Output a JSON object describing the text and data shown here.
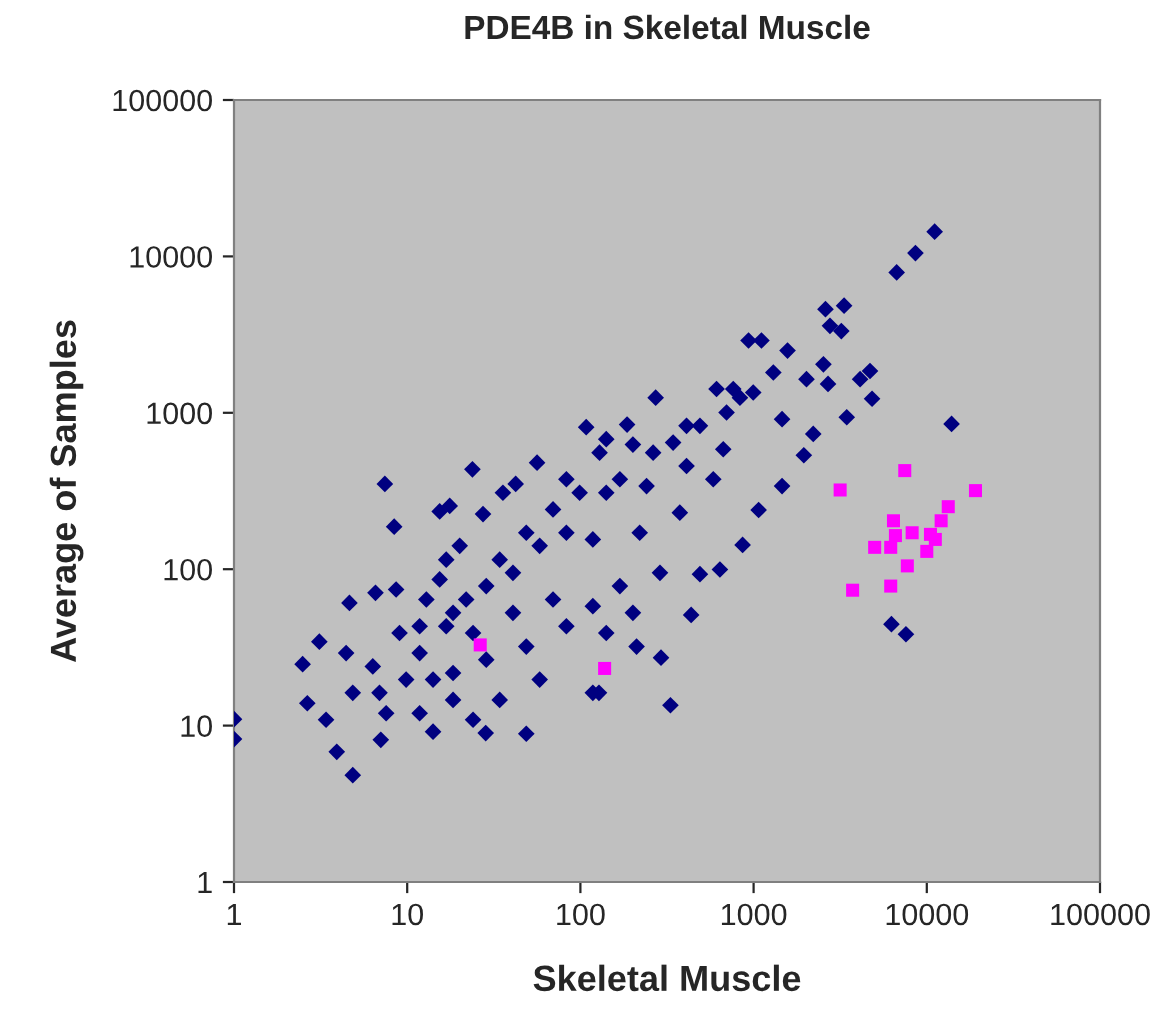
{
  "chart_data": {
    "type": "scatter",
    "title": "PDE4B in Skeletal Muscle",
    "xlabel": "Skeletal Muscle",
    "ylabel": "Average of Samples",
    "log": "xy",
    "grid": false,
    "legend": false,
    "xlim": [
      1,
      100000
    ],
    "ylim": [
      1,
      100000
    ],
    "xticks": [
      1,
      10,
      100,
      1000,
      10000,
      100000
    ],
    "yticks": [
      1,
      10,
      100,
      1000,
      10000,
      100000
    ],
    "series": [
      {
        "color": "#000080",
        "marker": "diamond",
        "x": [
          11100,
          8600,
          6700,
          2600,
          3330,
          2760,
          3210,
          935,
          1110,
          1570,
          2530,
          2020,
          2690,
          4120,
          4700,
          4830,
          3450,
          13900,
          1460,
          2210,
          1950,
          1460,
          6250,
          7580,
          1069,
          864,
          639,
          490,
          436,
          331,
          292,
          211,
          118,
          128,
          48.7,
          28.4,
          14.1,
          4.85,
          3.92,
          7.04,
          1,
          1,
          2.65,
          2.49,
          3.11,
          4.64,
          6.56,
          8.63,
          7.43,
          8.41,
          15.4,
          17.6,
          23.8,
          42.3,
          56.2,
          108,
          186,
          272,
          141,
          201,
          129,
          69.5,
          35.7,
          27.4,
          611,
          763,
          1300,
          410,
          343,
          668,
          585,
          241,
          169,
          83,
          375,
          220,
          118,
          58.2,
          34.2,
          20.1,
          15.4,
          21.9,
          40.8,
          69.5,
          118,
          169,
          288,
          201,
          141,
          83,
          48.7,
          28.6,
          18.4,
          11.8,
          9.86,
          6.33,
          4.85,
          3.4,
          7.56,
          11.8,
          18.4,
          34.2,
          58.2,
          18.4,
          11.8,
          24,
          28.6,
          40.8,
          48.7,
          83,
          99,
          141,
          263,
          410,
          490,
          698,
          834,
          995,
          16.8,
          14.1,
          24,
          6.92,
          4.44,
          9.03,
          16.8,
          12.9
        ],
        "values": [
          14400,
          10500,
          7900,
          4600,
          4840,
          3600,
          3330,
          2900,
          2900,
          2500,
          2040,
          1640,
          1530,
          1640,
          1850,
          1230,
          937,
          849,
          910,
          733,
          535,
          340,
          44.5,
          38.4,
          239,
          143,
          99.6,
          93,
          51,
          13.5,
          27.2,
          32,
          16.2,
          16.2,
          8.87,
          8.96,
          9.14,
          4.82,
          6.8,
          8.11,
          11,
          8.2,
          13.9,
          24.7,
          34.4,
          60.9,
          70.6,
          74.2,
          351,
          187,
          234,
          254,
          435,
          351,
          480,
          809,
          841,
          1250,
          678,
          626,
          556,
          241,
          308,
          225,
          1420,
          1420,
          1810,
          825,
          645,
          585,
          376,
          340,
          376,
          376,
          230,
          171,
          155,
          141,
          115,
          141,
          86,
          64,
          52.6,
          64,
          58,
          78,
          94.8,
          52.6,
          39.1,
          43.2,
          32,
          26.4,
          21.7,
          29.1,
          19.7,
          23.9,
          16.2,
          10.9,
          12,
          12,
          14.6,
          14.6,
          19.7,
          52.6,
          43.2,
          39.1,
          78,
          94.8,
          171,
          171,
          308,
          308,
          556,
          457,
          825,
          1004,
          1250,
          1349,
          43.2,
          19.7,
          10.9,
          16.2,
          29.1,
          39.1,
          115,
          64
        ]
      },
      {
        "color": "#ff00ff",
        "marker": "square",
        "x": [
          26.4,
          138,
          3160,
          7460,
          19100,
          13300,
          12100,
          6420,
          6590,
          8230,
          10500,
          11200,
          5000,
          6190,
          10000,
          7720,
          3730,
          6190
        ],
        "values": [
          32.8,
          23.2,
          321,
          427,
          318,
          251,
          204,
          204,
          164,
          171,
          167,
          155,
          138,
          138,
          130,
          105,
          73.4,
          78
        ]
      }
    ]
  }
}
